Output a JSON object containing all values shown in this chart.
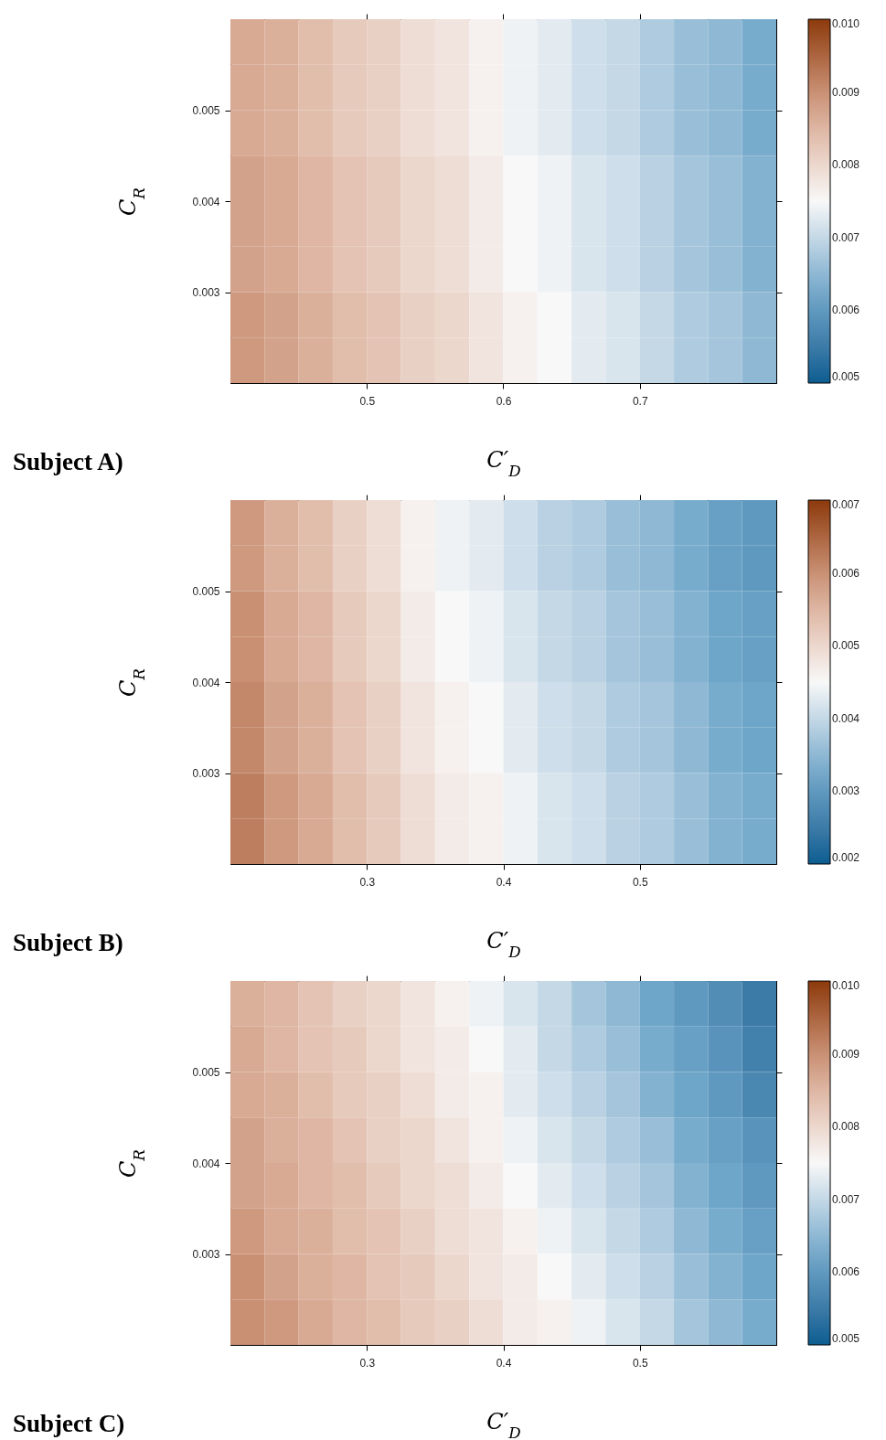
{
  "chart_data": [
    {
      "type": "heatmap",
      "title": "Subject A)",
      "xlabel": "C′$_{D}$",
      "ylabel": "C$_{R}$",
      "x": [
        0.4125,
        0.4375,
        0.4625,
        0.4875,
        0.5125,
        0.5375,
        0.5625,
        0.5875,
        0.6125,
        0.6375,
        0.6625,
        0.6875,
        0.7125,
        0.7375,
        0.7625,
        0.7875
      ],
      "y": [
        0.00575,
        0.00525,
        0.00475,
        0.00425,
        0.00375,
        0.00325,
        0.00275,
        0.00225
      ],
      "xlim": [
        0.4,
        0.8
      ],
      "xticks": [
        0.5,
        0.6,
        0.7
      ],
      "ylim": [
        0.002,
        0.006
      ],
      "yticks": [
        0.003,
        0.004,
        0.005
      ],
      "clim": [
        0.005,
        0.01
      ],
      "cticks": [
        0.005,
        0.006,
        0.007,
        0.008,
        0.009,
        {
          "value": 0.01,
          "label": "0.010"
        }
      ],
      "cells": [
        [
          0.0087,
          0.0086,
          0.0084,
          0.0082,
          0.0081,
          0.0079,
          0.0078,
          0.0076,
          0.0074,
          0.0073,
          0.0071,
          0.007,
          0.0068,
          0.0066,
          0.0065,
          0.0063
        ],
        [
          0.0087,
          0.0086,
          0.0084,
          0.0082,
          0.0081,
          0.0079,
          0.0078,
          0.0076,
          0.0074,
          0.0073,
          0.0071,
          0.007,
          0.0068,
          0.0066,
          0.0065,
          0.0063
        ],
        [
          0.0087,
          0.0086,
          0.0084,
          0.0082,
          0.0081,
          0.0079,
          0.0078,
          0.0076,
          0.0074,
          0.0073,
          0.0071,
          0.007,
          0.0068,
          0.0066,
          0.0065,
          0.0063
        ],
        [
          0.0088,
          0.0087,
          0.0085,
          0.0083,
          0.0082,
          0.008,
          0.0079,
          0.0077,
          0.0075,
          0.0074,
          0.0072,
          0.0071,
          0.0069,
          0.0067,
          0.0066,
          0.0064
        ],
        [
          0.0088,
          0.0087,
          0.0085,
          0.0083,
          0.0082,
          0.008,
          0.0079,
          0.0077,
          0.0075,
          0.0074,
          0.0072,
          0.0071,
          0.0069,
          0.0067,
          0.0066,
          0.0064
        ],
        [
          0.0088,
          0.0087,
          0.0085,
          0.0083,
          0.0082,
          0.008,
          0.0079,
          0.0077,
          0.0075,
          0.0074,
          0.0072,
          0.0071,
          0.0069,
          0.0067,
          0.0066,
          0.0064
        ],
        [
          0.0089,
          0.0088,
          0.0086,
          0.0084,
          0.0083,
          0.0081,
          0.008,
          0.0078,
          0.0076,
          0.0075,
          0.0073,
          0.0072,
          0.007,
          0.0068,
          0.0067,
          0.0065
        ],
        [
          0.0089,
          0.0088,
          0.0086,
          0.0084,
          0.0083,
          0.0081,
          0.008,
          0.0078,
          0.0076,
          0.0075,
          0.0073,
          0.0072,
          0.007,
          0.0068,
          0.0067,
          0.0065
        ]
      ]
    },
    {
      "type": "heatmap",
      "title": "Subject B)",
      "xlabel": "C′$_{D}$",
      "ylabel": "C$_{R}$",
      "x": [
        0.2125,
        0.2375,
        0.2625,
        0.2875,
        0.3125,
        0.3375,
        0.3625,
        0.3875,
        0.4125,
        0.4375,
        0.4625,
        0.4875,
        0.5125,
        0.5375,
        0.5625,
        0.5875
      ],
      "y": [
        0.00575,
        0.00525,
        0.00475,
        0.00425,
        0.00375,
        0.00325,
        0.00275,
        0.00225
      ],
      "xlim": [
        0.2,
        0.6
      ],
      "xticks": [
        0.3,
        0.4,
        0.5
      ],
      "ylim": [
        0.002,
        0.006
      ],
      "yticks": [
        0.003,
        0.004,
        0.005
      ],
      "clim": [
        0.002,
        0.007
      ],
      "cticks": [
        0.002,
        0.003,
        0.004,
        0.005,
        0.006,
        0.007
      ],
      "cells": [
        [
          0.0059,
          0.0056,
          0.0054,
          0.0051,
          0.0049,
          0.0046,
          0.0044,
          0.0043,
          0.0041,
          0.0039,
          0.0038,
          0.0036,
          0.0035,
          0.0033,
          0.0031,
          0.003
        ],
        [
          0.0059,
          0.0056,
          0.0054,
          0.0051,
          0.0049,
          0.0046,
          0.0044,
          0.0043,
          0.0041,
          0.0039,
          0.0038,
          0.0036,
          0.0035,
          0.0033,
          0.0031,
          0.003
        ],
        [
          0.006,
          0.0057,
          0.0055,
          0.0052,
          0.005,
          0.0047,
          0.0045,
          0.0044,
          0.0042,
          0.004,
          0.0039,
          0.0037,
          0.0036,
          0.0034,
          0.0032,
          0.0031
        ],
        [
          0.006,
          0.0057,
          0.0055,
          0.0052,
          0.005,
          0.0047,
          0.0045,
          0.0044,
          0.0042,
          0.004,
          0.0039,
          0.0037,
          0.0036,
          0.0034,
          0.0032,
          0.0031
        ],
        [
          0.0061,
          0.0058,
          0.0056,
          0.0053,
          0.0051,
          0.0048,
          0.0046,
          0.0045,
          0.0043,
          0.0041,
          0.004,
          0.0038,
          0.0037,
          0.0035,
          0.0033,
          0.0032
        ],
        [
          0.0061,
          0.0058,
          0.0056,
          0.0053,
          0.0051,
          0.0048,
          0.0046,
          0.0045,
          0.0043,
          0.0041,
          0.004,
          0.0038,
          0.0037,
          0.0035,
          0.0033,
          0.0032
        ],
        [
          0.0062,
          0.0059,
          0.0057,
          0.0054,
          0.0052,
          0.0049,
          0.0047,
          0.0046,
          0.0044,
          0.0042,
          0.0041,
          0.0039,
          0.0038,
          0.0036,
          0.0034,
          0.0033
        ],
        [
          0.0062,
          0.0059,
          0.0057,
          0.0054,
          0.0052,
          0.0049,
          0.0047,
          0.0046,
          0.0044,
          0.0042,
          0.0041,
          0.0039,
          0.0038,
          0.0036,
          0.0034,
          0.0033
        ]
      ]
    },
    {
      "type": "heatmap",
      "title": "Subject C)",
      "xlabel": "C′$_{D}$",
      "ylabel": "C$_{R}$",
      "x": [
        0.2125,
        0.2375,
        0.2625,
        0.2875,
        0.3125,
        0.3375,
        0.3625,
        0.3875,
        0.4125,
        0.4375,
        0.4625,
        0.4875,
        0.5125,
        0.5375,
        0.5625,
        0.5875
      ],
      "y": [
        0.00575,
        0.00525,
        0.00475,
        0.00425,
        0.00375,
        0.00325,
        0.00275,
        0.00225
      ],
      "xlim": [
        0.2,
        0.6
      ],
      "xticks": [
        0.3,
        0.4,
        0.5
      ],
      "ylim": [
        0.002,
        0.006
      ],
      "yticks": [
        0.003,
        0.004,
        0.005
      ],
      "clim": [
        0.005,
        0.01
      ],
      "cticks": [
        0.005,
        0.006,
        0.007,
        0.008,
        0.009,
        {
          "value": 0.01,
          "label": "0.010"
        }
      ],
      "cells": [
        [
          0.0086,
          0.0085,
          0.0083,
          0.0081,
          0.008,
          0.0078,
          0.0076,
          0.0074,
          0.0072,
          0.007,
          0.0067,
          0.0065,
          0.0062,
          0.006,
          0.0058,
          0.0055
        ],
        [
          0.0087,
          0.0085,
          0.0083,
          0.0082,
          0.008,
          0.0078,
          0.0077,
          0.0075,
          0.0073,
          0.007,
          0.0068,
          0.0066,
          0.0063,
          0.0061,
          0.0059,
          0.0056
        ],
        [
          0.0087,
          0.0086,
          0.0084,
          0.0082,
          0.0081,
          0.0079,
          0.0077,
          0.0076,
          0.0073,
          0.0071,
          0.0069,
          0.0067,
          0.0064,
          0.0062,
          0.006,
          0.0057
        ],
        [
          0.0088,
          0.0086,
          0.0085,
          0.0083,
          0.0081,
          0.008,
          0.0078,
          0.0076,
          0.0074,
          0.0072,
          0.007,
          0.0068,
          0.0066,
          0.0063,
          0.0061,
          0.0059
        ],
        [
          0.0088,
          0.0087,
          0.0085,
          0.0084,
          0.0082,
          0.008,
          0.0079,
          0.0077,
          0.0075,
          0.0073,
          0.0071,
          0.0069,
          0.0067,
          0.0064,
          0.0062,
          0.006
        ],
        [
          0.0089,
          0.0087,
          0.0086,
          0.0084,
          0.0083,
          0.0081,
          0.0079,
          0.0078,
          0.0076,
          0.0074,
          0.0072,
          0.007,
          0.0068,
          0.0065,
          0.0063,
          0.0061
        ],
        [
          0.009,
          0.0088,
          0.0086,
          0.0085,
          0.0083,
          0.0082,
          0.008,
          0.0078,
          0.0077,
          0.0075,
          0.0073,
          0.0071,
          0.0069,
          0.0066,
          0.0064,
          0.0062
        ],
        [
          0.009,
          0.0089,
          0.0087,
          0.0085,
          0.0084,
          0.0082,
          0.0081,
          0.0079,
          0.0077,
          0.0076,
          0.0074,
          0.0072,
          0.007,
          0.0067,
          0.0065,
          0.0063
        ]
      ]
    }
  ]
}
